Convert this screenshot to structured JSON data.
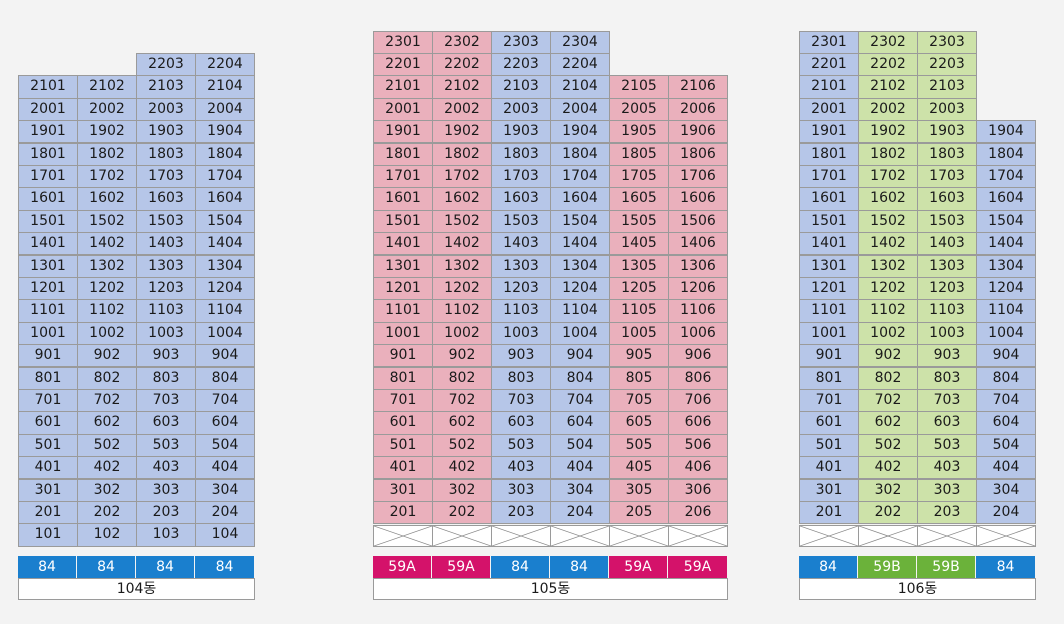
{
  "colors": {
    "type84_cell": "#b6c6e8",
    "type59A_cell": "#eab0bc",
    "type59B_cell": "#cde2a9",
    "type84_tag": "#1a7fce",
    "type59A_tag": "#d4126a",
    "type59B_tag": "#6bb23a"
  },
  "buildings": [
    {
      "label": "104동",
      "columns": [
        {
          "size": "84",
          "top_floor": 21,
          "bottom_floor": 1,
          "unit": 1
        },
        {
          "size": "84",
          "top_floor": 21,
          "bottom_floor": 1,
          "unit": 2
        },
        {
          "size": "84",
          "top_floor": 22,
          "bottom_floor": 1,
          "unit": 3
        },
        {
          "size": "84",
          "top_floor": 22,
          "bottom_floor": 1,
          "unit": 4
        }
      ],
      "pilotis": false
    },
    {
      "label": "105동",
      "columns": [
        {
          "size": "59A",
          "top_floor": 23,
          "bottom_floor": 2,
          "unit": 1
        },
        {
          "size": "59A",
          "top_floor": 23,
          "bottom_floor": 2,
          "unit": 2
        },
        {
          "size": "84",
          "top_floor": 23,
          "bottom_floor": 2,
          "unit": 3
        },
        {
          "size": "84",
          "top_floor": 23,
          "bottom_floor": 2,
          "unit": 4
        },
        {
          "size": "59A",
          "top_floor": 21,
          "bottom_floor": 2,
          "unit": 5
        },
        {
          "size": "59A",
          "top_floor": 21,
          "bottom_floor": 2,
          "unit": 6
        }
      ],
      "pilotis": true
    },
    {
      "label": "106동",
      "columns": [
        {
          "size": "84",
          "top_floor": 23,
          "bottom_floor": 2,
          "unit": 1
        },
        {
          "size": "59B",
          "top_floor": 23,
          "bottom_floor": 2,
          "unit": 2
        },
        {
          "size": "59B",
          "top_floor": 23,
          "bottom_floor": 2,
          "unit": 3
        },
        {
          "size": "84",
          "top_floor": 19,
          "bottom_floor": 2,
          "unit": 4
        }
      ],
      "pilotis": true
    }
  ]
}
